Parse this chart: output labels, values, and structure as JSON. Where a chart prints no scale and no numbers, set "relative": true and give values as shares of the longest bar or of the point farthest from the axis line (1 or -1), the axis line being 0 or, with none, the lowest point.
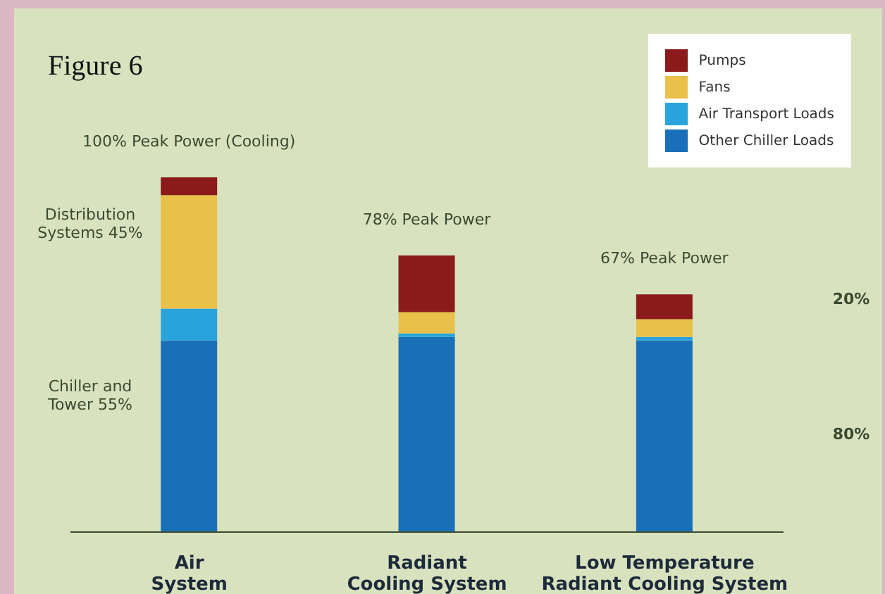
{
  "chart_data": {
    "type": "bar",
    "title": "Figure 6",
    "relative": true,
    "stacked": true,
    "legend": "top right",
    "categories": [
      "Air System",
      "Radiant Cooling System",
      "Low Temperature Radiant Cooling System"
    ],
    "series": [
      {
        "name": "Other Chiller Loads",
        "color": "#1a70b8",
        "values": [
          0.54,
          0.55,
          0.54
        ]
      },
      {
        "name": "Air Transport Loads",
        "color": "#29a3dc",
        "values": [
          0.09,
          0.01,
          0.01
        ]
      },
      {
        "name": "Fans",
        "color": "#e8c04a",
        "values": [
          0.32,
          0.06,
          0.05
        ]
      },
      {
        "name": "Pumps",
        "color": "#8b1a1a",
        "values": [
          0.05,
          0.16,
          0.07
        ]
      }
    ],
    "totals": [
      "100% Peak Power (Cooling)",
      "78% Peak Power",
      "67% Peak Power"
    ],
    "annotations": [
      "Distribution Systems 45%",
      "Chiller and Tower 55%",
      "20%",
      "80%"
    ]
  }
}
